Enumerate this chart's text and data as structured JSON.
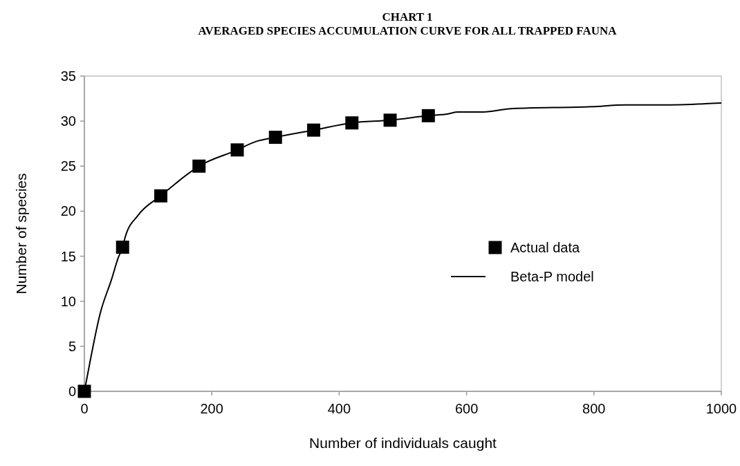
{
  "chart_data": {
    "type": "scatter",
    "title": "CHART 1",
    "subtitle": "AVERAGED SPECIES ACCUMULATION CURVE FOR ALL TRAPPED FAUNA",
    "xlabel": "Number of individuals caught",
    "ylabel": "Number of species",
    "xlim": [
      0,
      1000
    ],
    "xticks": [
      0,
      200,
      400,
      600,
      800,
      1000
    ],
    "ylim": [
      0,
      35
    ],
    "yticks": [
      0,
      5,
      10,
      15,
      20,
      25,
      30,
      35
    ],
    "grid": false,
    "legend": "right",
    "series": [
      {
        "name": "Actual data",
        "color": "#000000",
        "marker": "square",
        "x": [
          0,
          60,
          120,
          180,
          240,
          300,
          360,
          420,
          480,
          540
        ],
        "values": [
          0,
          16.0,
          21.7,
          25.0,
          26.8,
          28.2,
          29.0,
          29.8,
          30.1,
          30.6
        ]
      },
      {
        "name": "Beta-P model",
        "type": "line",
        "color": "#000000",
        "marker": "none",
        "line_style": "solid",
        "x": [
          0,
          3,
          25,
          43,
          53,
          60,
          64,
          85,
          120,
          180,
          240,
          268,
          300,
          360,
          420,
          480,
          540,
          571,
          586,
          622,
          673,
          797,
          849,
          907,
          1000
        ],
        "values": [
          0,
          1.1,
          8.7,
          12.5,
          14.8,
          16.0,
          17.1,
          19.6,
          21.7,
          25.0,
          26.8,
          27.7,
          28.2,
          29.0,
          29.8,
          30.1,
          30.6,
          30.8,
          31.0,
          31.0,
          31.4,
          31.6,
          31.8,
          31.8,
          32.0
        ]
      }
    ]
  }
}
